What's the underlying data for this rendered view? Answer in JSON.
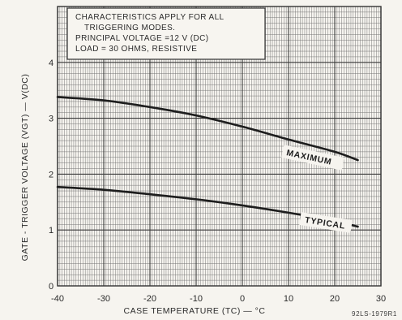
{
  "chart_data": {
    "type": "line",
    "xlabel": "CASE TEMPERATURE (TC) — °C",
    "ylabel": "GATE - TRIGGER VOLTAGE (VGT) — V(DC)",
    "xlim": [
      -40,
      30
    ],
    "ylim": [
      0,
      5
    ],
    "x_ticks": [
      "-40",
      "-30",
      "-20",
      "-10",
      "0",
      "10",
      "20",
      "30"
    ],
    "y_ticks": [
      "0",
      "1",
      "2",
      "3",
      "4"
    ],
    "grid": true,
    "note_lines": [
      "CHARACTERISTICS APPLY FOR ALL",
      "TRIGGERING MODES.",
      "PRINCIPAL VOLTAGE =12 V (DC)",
      "LOAD = 30 OHMS, RESISTIVE"
    ],
    "figure_id": "92LS-1979R1",
    "series": [
      {
        "name": "MAXIMUM",
        "x": [
          -40,
          -30,
          -20,
          -10,
          0,
          10,
          20,
          25
        ],
        "y": [
          3.38,
          3.32,
          3.2,
          3.05,
          2.85,
          2.62,
          2.4,
          2.25
        ]
      },
      {
        "name": "TYPICAL",
        "x": [
          -40,
          -30,
          -20,
          -10,
          0,
          10,
          20,
          25
        ],
        "y": [
          1.77,
          1.72,
          1.64,
          1.55,
          1.44,
          1.31,
          1.16,
          1.06
        ]
      }
    ]
  }
}
